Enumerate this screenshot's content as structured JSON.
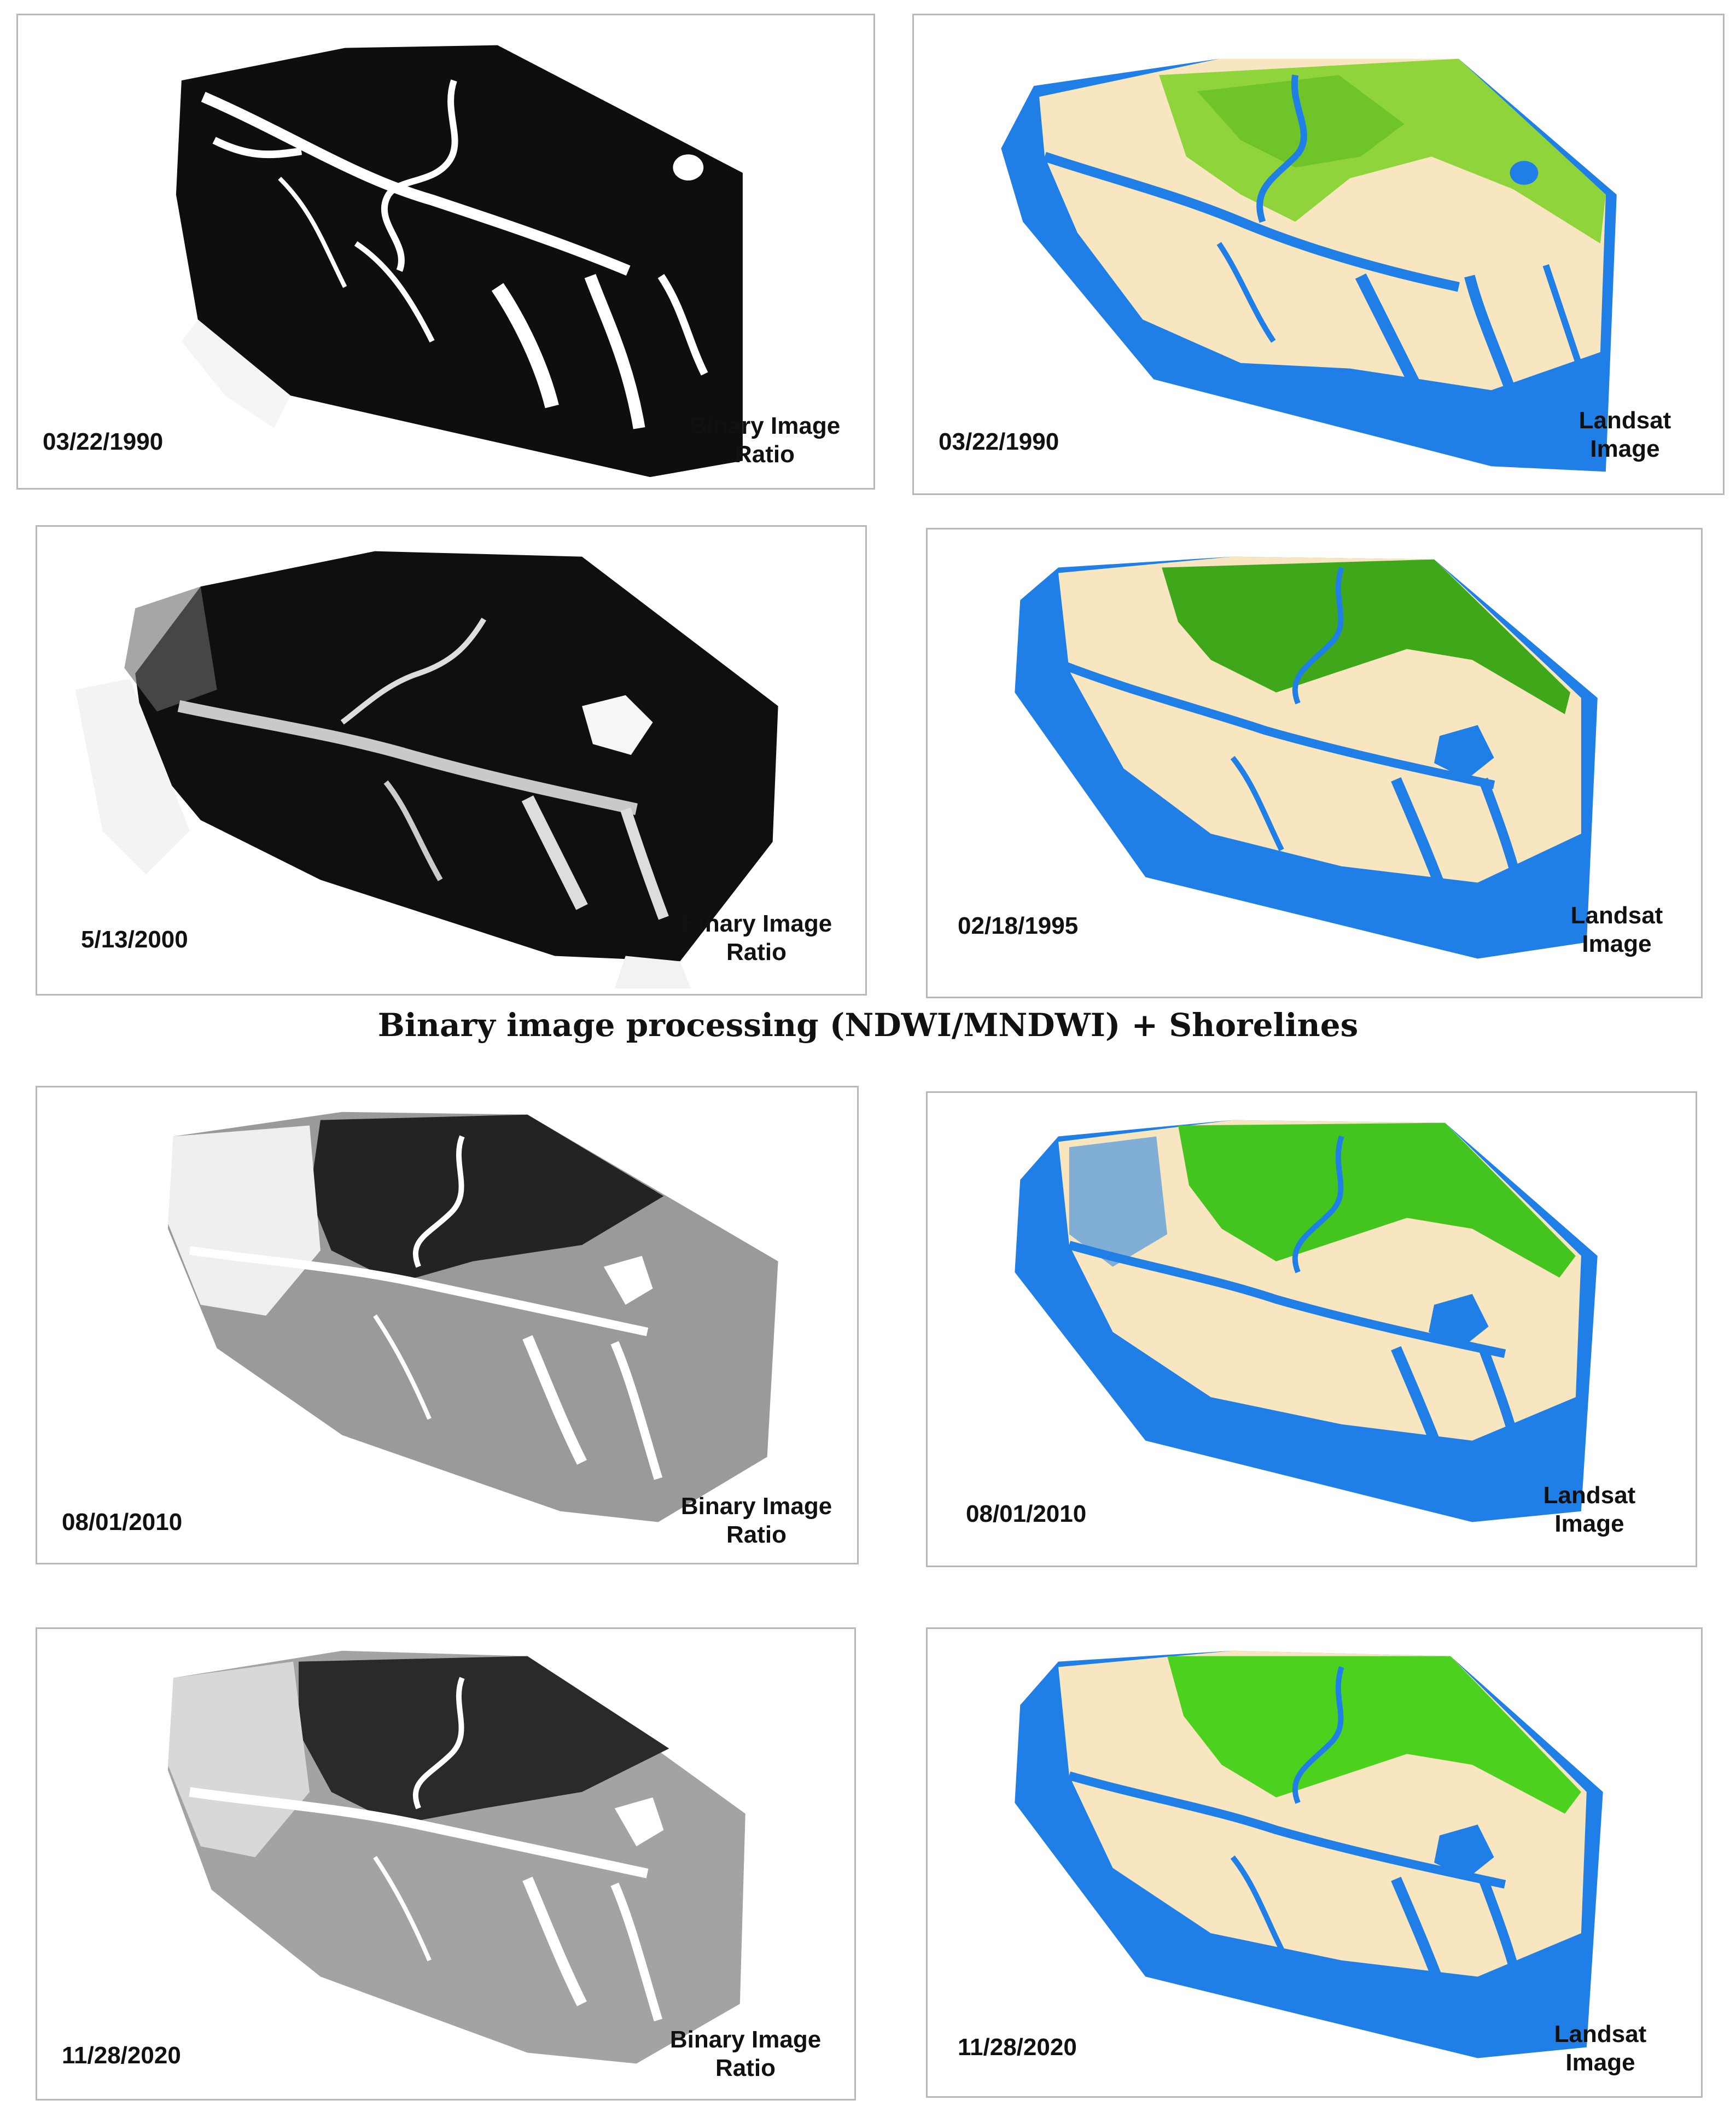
{
  "caption": "Binary image processing (NDWI/MNDWI) + Shorelines",
  "colors": {
    "water": "#1f7fe6",
    "land": "#f7e6bf",
    "vegetation": "#4fbf1f",
    "vegetation_light": "#8fd43a",
    "binary_dark": "#111111",
    "binary_light": "#ffffff"
  },
  "panels": [
    {
      "name": "binary-1990",
      "date": "03/22/1990",
      "label_line1": "Binary Image",
      "label_line2": "Ratio",
      "kind": "binary"
    },
    {
      "name": "landsat-1990",
      "date": "03/22/1990",
      "label_line1": "Landsat",
      "label_line2": "Image",
      "kind": "landsat"
    },
    {
      "name": "binary-2000",
      "date": "5/13/2000",
      "label_line1": "Binary Image",
      "label_line2": "Ratio",
      "kind": "binary"
    },
    {
      "name": "landsat-1995",
      "date": "02/18/1995",
      "label_line1": "Landsat",
      "label_line2": "Image",
      "kind": "landsat"
    },
    {
      "name": "binary-2010",
      "date": "08/01/2010",
      "label_line1": "Binary Image",
      "label_line2": "Ratio",
      "kind": "binary-gray"
    },
    {
      "name": "landsat-2010",
      "date": "08/01/2010",
      "label_line1": "Landsat",
      "label_line2": "Image",
      "kind": "landsat"
    },
    {
      "name": "binary-2020",
      "date": "11/28/2020",
      "label_line1": "Binary Image",
      "label_line2": "Ratio",
      "kind": "binary-gray"
    },
    {
      "name": "landsat-2020",
      "date": "11/28/2020",
      "label_line1": "Landsat",
      "label_line2": "Image",
      "kind": "landsat"
    }
  ]
}
